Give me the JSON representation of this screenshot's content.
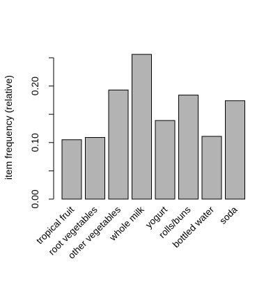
{
  "chart_data": {
    "type": "bar",
    "title": "",
    "xlabel": "",
    "ylabel": "item frequency (relative)",
    "categories": [
      "tropical fruit",
      "root vegetables",
      "other vegetables",
      "whole milk",
      "yogurt",
      "rolls/buns",
      "bottled water",
      "soda"
    ],
    "values": [
      0.105,
      0.109,
      0.193,
      0.256,
      0.139,
      0.184,
      0.111,
      0.174
    ],
    "ylim": [
      0,
      0.25
    ],
    "ytick_values": [
      0.0,
      0.05,
      0.1,
      0.15,
      0.2,
      0.25
    ],
    "ytick_labels": [
      "0.00",
      "",
      "0.10",
      "",
      "0.20",
      ""
    ],
    "grid": false,
    "legend": "none",
    "bar_color": "#b3b3b3",
    "bar_edge_color": "#000000"
  }
}
